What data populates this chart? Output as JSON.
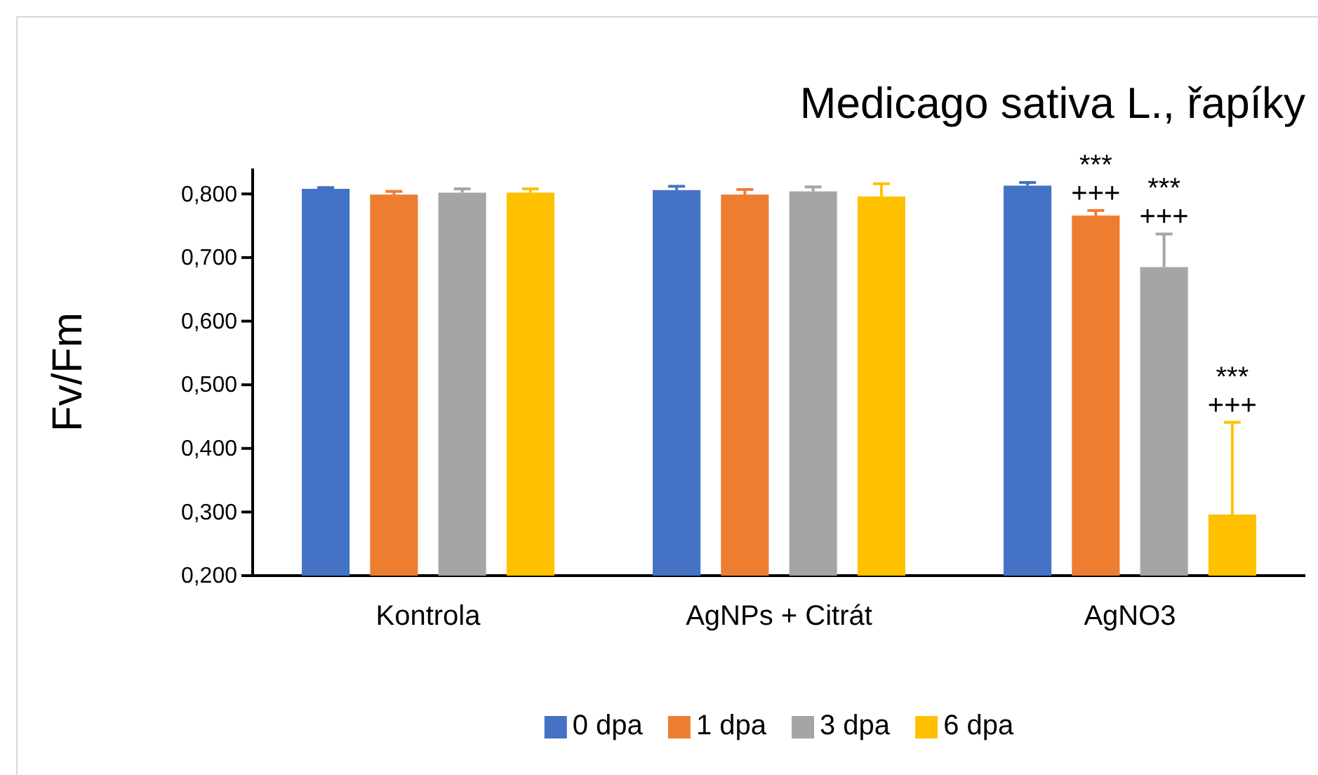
{
  "chart_data": {
    "type": "bar",
    "title": "Medicago sativa L., řapíky",
    "ylabel": "Fv/Fm",
    "categories": [
      "Kontrola",
      "AgNPs + Citrát",
      "AgNO3"
    ],
    "series": [
      {
        "name": "0 dpa",
        "color": "#4472c4",
        "values": [
          0.808,
          0.806,
          0.813
        ],
        "errors": [
          0.002,
          0.006,
          0.005
        ]
      },
      {
        "name": "1 dpa",
        "color": "#ed7d31",
        "values": [
          0.799,
          0.799,
          0.766
        ],
        "errors": [
          0.005,
          0.008,
          0.008
        ]
      },
      {
        "name": "3 dpa",
        "color": "#a5a5a5",
        "values": [
          0.802,
          0.804,
          0.685
        ],
        "errors": [
          0.006,
          0.007,
          0.052
        ]
      },
      {
        "name": "6 dpa",
        "color": "#ffc000",
        "values": [
          0.802,
          0.796,
          0.296
        ],
        "errors": [
          0.006,
          0.02,
          0.145
        ]
      }
    ],
    "ylim": [
      0.2,
      0.84
    ],
    "yticks": [
      {
        "value": 0.2,
        "label": "0,200"
      },
      {
        "value": 0.3,
        "label": "0,300"
      },
      {
        "value": 0.4,
        "label": "0,400"
      },
      {
        "value": 0.5,
        "label": "0,500"
      },
      {
        "value": 0.6,
        "label": "0,600"
      },
      {
        "value": 0.7,
        "label": "0,700"
      },
      {
        "value": 0.8,
        "label": "0,800"
      }
    ],
    "annotations": [
      "***\n+++",
      "***\n+++",
      "***\n+++"
    ],
    "grid": false,
    "legend": "bottom"
  }
}
